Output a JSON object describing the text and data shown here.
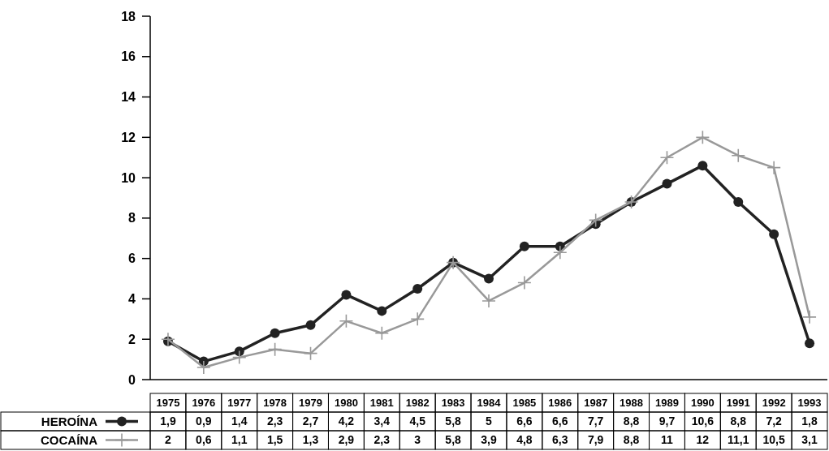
{
  "chart_data": {
    "type": "line",
    "categories": [
      "1975",
      "1976",
      "1977",
      "1978",
      "1979",
      "1980",
      "1981",
      "1982",
      "1983",
      "1984",
      "1985",
      "1986",
      "1987",
      "1988",
      "1989",
      "1990",
      "1991",
      "1992",
      "1993"
    ],
    "series": [
      {
        "name": "HEROÍNA",
        "color": "#222222",
        "marker": "circle",
        "values": [
          1.9,
          0.9,
          1.4,
          2.3,
          2.7,
          4.2,
          3.4,
          4.5,
          5.8,
          5,
          6.6,
          6.6,
          7.7,
          8.8,
          9.7,
          10.6,
          8.8,
          7.2,
          1.8
        ],
        "value_labels": [
          "1,9",
          "0,9",
          "1,4",
          "2,3",
          "2,7",
          "4,2",
          "3,4",
          "4,5",
          "5,8",
          "5",
          "6,6",
          "6,6",
          "7,7",
          "8,8",
          "9,7",
          "10,6",
          "8,8",
          "7,2",
          "1,8"
        ]
      },
      {
        "name": "COCAÍNA",
        "color": "#999999",
        "marker": "cross",
        "values": [
          2,
          0.6,
          1.1,
          1.5,
          1.3,
          2.9,
          2.3,
          3,
          5.8,
          3.9,
          4.8,
          6.3,
          7.9,
          8.8,
          11,
          12,
          11.1,
          10.5,
          3.1
        ],
        "value_labels": [
          "2",
          "0,6",
          "1,1",
          "1,5",
          "1,3",
          "2,9",
          "2,3",
          "3",
          "5,8",
          "3,9",
          "4,8",
          "6,3",
          "7,9",
          "8,8",
          "11",
          "12",
          "11,1",
          "10,5",
          "3,1"
        ]
      }
    ],
    "ylim": [
      0,
      18
    ],
    "yticks": [
      0,
      2,
      4,
      6,
      8,
      10,
      12,
      14,
      16,
      18
    ],
    "grid": false,
    "legend": "bottom left"
  }
}
